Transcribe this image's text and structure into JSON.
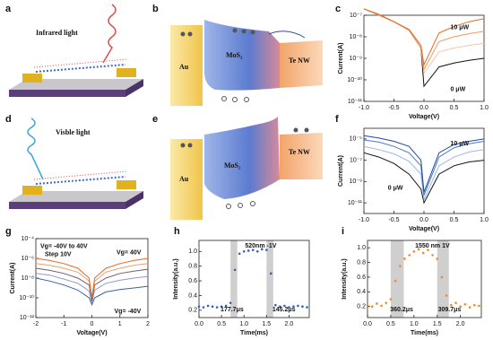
{
  "figures": [
    {
      "label": "a",
      "texts": [
        "Infrared light"
      ]
    },
    {
      "label": "b",
      "texts": [
        "Au",
        "MoS₂",
        "Te NW"
      ]
    },
    {
      "label": "d",
      "texts": [
        "Visble light"
      ]
    },
    {
      "label": "e",
      "texts": [
        "Au",
        "MoS₂",
        "Te NW"
      ]
    }
  ],
  "chart_data": [
    {
      "type": "line",
      "panel": "c",
      "xlabel": "Voltage(V)",
      "ylabel": "Current(A)",
      "log_y": true,
      "x": [
        -1,
        -0.75,
        -0.5,
        -0.25,
        -0.05,
        0,
        0.25,
        0.5,
        0.75,
        1
      ],
      "series": [
        {
          "color": "#111111",
          "values": [
            2e-07,
            1e-07,
            5e-08,
            2e-08,
            3e-09,
            5e-11,
            4e-10,
            6e-10,
            8e-10,
            1e-09
          ]
        },
        {
          "color": "#f6c7a4",
          "values": [
            2e-07,
            1e-07,
            5e-08,
            2e-08,
            3e-09,
            2e-10,
            2e-09,
            3e-09,
            4e-09,
            5e-09
          ]
        },
        {
          "color": "#f19a63",
          "values": [
            2e-07,
            1e-07,
            5e-08,
            2e-08,
            3e-09,
            3e-10,
            6e-09,
            1e-08,
            1.4e-08,
            1.8e-08
          ]
        },
        {
          "color": "#e06b24",
          "values": [
            2e-07,
            1.1e-07,
            5e-08,
            2.2e-08,
            4e-09,
            5e-10,
            1.5e-08,
            3e-08,
            5e-08,
            7e-08
          ]
        }
      ],
      "xlim": [
        -1,
        1
      ],
      "ylim": [
        1e-11,
        1e-07
      ],
      "xticks": [
        {
          "value": -1,
          "label": "-1.0"
        },
        -0.5,
        {
          "value": 0,
          "label": "0.0"
        },
        0.5,
        {
          "value": 1,
          "label": "1.0"
        }
      ],
      "yticks": [
        {
          "value": 1e-07,
          "label": "10⁻⁷"
        },
        {
          "value": 1e-08,
          "label": "10⁻⁸"
        },
        {
          "value": 1e-09,
          "label": "10⁻⁹"
        },
        {
          "value": 1e-10,
          "label": "10⁻¹⁰"
        },
        {
          "value": 1e-11,
          "label": "10⁻¹¹"
        }
      ],
      "annotations": [
        "10 μW",
        "0 μW"
      ]
    },
    {
      "type": "line",
      "panel": "f",
      "xlabel": "Voltage(V)",
      "ylabel": "Current(A)",
      "log_y": true,
      "x": [
        -1,
        -0.75,
        -0.5,
        -0.25,
        -0.05,
        0,
        0.25,
        0.5,
        0.75,
        1
      ],
      "series": [
        {
          "color": "#111111",
          "values": [
            5e-07,
            2e-07,
            5e-08,
            5e-09,
            2e-10,
            1e-11,
            5e-09,
            3e-08,
            7e-08,
            1e-07
          ]
        },
        {
          "color": "#9bb8e8",
          "values": [
            2e-06,
            1e-06,
            4e-07,
            8e-08,
            5e-09,
            2e-11,
            3e-08,
            2e-07,
            6e-07,
            1e-06
          ]
        },
        {
          "color": "#4a78c8",
          "values": [
            8e-06,
            5e-06,
            2e-06,
            5e-07,
            3e-08,
            5e-11,
            2e-07,
            1.5e-06,
            3.5e-06,
            6e-06
          ]
        },
        {
          "color": "#1f4aa0",
          "values": [
            2e-05,
            1.2e-05,
            6e-06,
            2e-06,
            1e-07,
            1e-10,
            5e-07,
            3e-06,
            6e-06,
            1e-05
          ]
        }
      ],
      "xlim": [
        -1,
        1
      ],
      "ylim": [
        1e-12,
        0.0001
      ],
      "xticks": [
        {
          "value": -1,
          "label": "-1.0"
        },
        -0.5,
        {
          "value": 0,
          "label": "0.0"
        },
        0.5,
        {
          "value": 1,
          "label": "1.0"
        }
      ],
      "yticks": [
        {
          "value": 1e-05,
          "label": "10⁻⁵"
        },
        {
          "value": 1e-07,
          "label": "10⁻⁷"
        },
        {
          "value": 1e-09,
          "label": "10⁻⁹"
        },
        {
          "value": 1e-11,
          "label": "10⁻¹¹"
        }
      ],
      "annotations": [
        "10 μW",
        "0 μW"
      ]
    },
    {
      "type": "line",
      "panel": "g",
      "xlabel": "Voltage(V)",
      "ylabel": "Current(A)",
      "log_y": true,
      "x": [
        -2,
        -1.5,
        -1,
        -0.5,
        -0.1,
        0,
        0.1,
        0.5,
        1,
        1.5,
        2
      ],
      "series": [
        {
          "color": "#3b5fa8",
          "values": [
            1e-08,
            5e-09,
            2e-09,
            6e-10,
            1e-10,
            2e-11,
            1e-10,
            4e-10,
            7e-10,
            1e-09,
            1.5e-09
          ]
        },
        {
          "color": "#8a9cc8",
          "values": [
            3e-08,
            2e-08,
            8e-09,
            3e-09,
            5e-10,
            3e-11,
            6e-10,
            3e-09,
            6e-09,
            1e-08,
            1.5e-08
          ]
        },
        {
          "color": "#7a5a6a",
          "values": [
            1e-07,
            6e-08,
            3e-08,
            1e-08,
            2e-09,
            5e-11,
            2e-09,
            1e-08,
            3e-08,
            5e-08,
            8e-08
          ]
        },
        {
          "color": "#e8a070",
          "values": [
            3e-07,
            2e-07,
            1e-07,
            4e-08,
            5e-09,
            1e-10,
            5e-09,
            4e-08,
            1e-07,
            2e-07,
            3e-07
          ]
        },
        {
          "color": "#e06b24",
          "values": [
            1e-06,
            6e-07,
            3e-07,
            1e-07,
            1e-08,
            1e-10,
            1e-08,
            1e-07,
            3e-07,
            6e-07,
            1e-06
          ]
        }
      ],
      "xlim": [
        -2,
        2
      ],
      "ylim": [
        1e-12,
        0.0001
      ],
      "xticks": [
        -2,
        -1,
        0,
        1,
        2
      ],
      "yticks": [
        {
          "value": 0.0001,
          "label": "10⁻⁴"
        },
        {
          "value": 1e-06,
          "label": "10⁻⁶"
        },
        {
          "value": 1e-08,
          "label": "10⁻⁸"
        },
        {
          "value": 1e-10,
          "label": "10⁻¹⁰"
        },
        {
          "value": 1e-12,
          "label": "10⁻¹²"
        }
      ],
      "annotations": [
        "Vg= -40V to 40V",
        "Step 10V",
        "Vg= 40V",
        "Vg= -40V"
      ]
    },
    {
      "type": "scatter",
      "panel": "h",
      "xlabel": "Time(ms)",
      "ylabel": "Intensity(a.u.)",
      "color": "#2f62c0",
      "x": [
        0,
        0.1,
        0.2,
        0.3,
        0.4,
        0.5,
        0.6,
        0.7,
        0.8,
        0.9,
        1,
        1.1,
        1.2,
        1.3,
        1.4,
        1.5,
        1.6,
        1.7,
        1.8,
        1.9,
        2,
        2.1,
        2.2,
        2.3,
        2.4
      ],
      "values": [
        0.25,
        0.24,
        0.26,
        0.25,
        0.24,
        0.25,
        0.26,
        0.3,
        0.75,
        0.97,
        1,
        1.01,
        1.02,
        1,
        1.03,
        1.02,
        0.7,
        0.27,
        0.25,
        0.26,
        0.24,
        0.25,
        0.26,
        0.25,
        0.24
      ],
      "shaded": [
        [
          0.7,
          0.85
        ],
        [
          1.5,
          1.65
        ]
      ],
      "xlim": [
        0,
        2.45
      ],
      "ylim": [
        0.1,
        1.15
      ],
      "xticks": [
        {
          "value": 0,
          "label": "0.0"
        },
        0.5,
        {
          "value": 1,
          "label": "1.0"
        },
        1.5,
        {
          "value": 2,
          "label": "2.0"
        }
      ],
      "yticks": [
        0.2,
        0.4,
        0.6,
        0.8,
        {
          "value": 1,
          "label": "1.0"
        }
      ],
      "annotations": [
        "520nm -1V",
        "177.7μs",
        "145.2μs"
      ]
    },
    {
      "type": "scatter",
      "panel": "i",
      "xlabel": "Time(ms)",
      "ylabel": "Intensity(a.u.)",
      "color": "#f08a24",
      "x": [
        0,
        0.1,
        0.2,
        0.3,
        0.4,
        0.5,
        0.6,
        0.7,
        0.8,
        0.9,
        1,
        1.1,
        1.2,
        1.3,
        1.4,
        1.5,
        1.6,
        1.7,
        1.8,
        1.9,
        2,
        2.1,
        2.2,
        2.3,
        2.4
      ],
      "values": [
        0.22,
        0.2,
        0.24,
        0.21,
        0.25,
        0.3,
        0.55,
        0.75,
        0.85,
        0.9,
        0.95,
        0.98,
        0.93,
        0.97,
        0.9,
        0.85,
        0.6,
        0.35,
        0.22,
        0.25,
        0.2,
        0.23,
        0.19,
        0.22,
        0.21
      ],
      "shaded": [
        [
          0.5,
          0.78
        ],
        [
          1.5,
          1.75
        ]
      ],
      "xlim": [
        0,
        2.45
      ],
      "ylim": [
        0.05,
        1.1
      ],
      "xticks": [
        {
          "value": 0,
          "label": "0.0"
        },
        0.5,
        {
          "value": 1,
          "label": "1.0"
        },
        1.5,
        {
          "value": 2,
          "label": "2.0"
        }
      ],
      "yticks": [
        0.2,
        0.4,
        0.6,
        0.8,
        {
          "value": 1,
          "label": "1.0"
        }
      ],
      "annotations": [
        "1550 nm 1V",
        "360.2μs",
        "309.7μs"
      ]
    }
  ]
}
